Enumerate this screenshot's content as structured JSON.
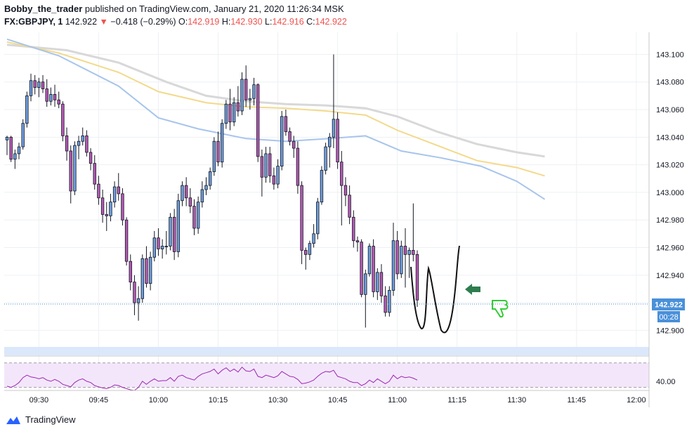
{
  "header": {
    "author": "Bobby_the_trader",
    "published_text": "published on TradingView.com, January 21, 2020 11:26:34 MSK",
    "symbol": "FX:GBPJPY, 1",
    "last": "142.922",
    "change": "−0.418 (−0.29%)",
    "o_label": "O:",
    "o_value": "142.919",
    "h_label": "H:",
    "h_value": "142.930",
    "l_label": "L:",
    "l_value": "142.916",
    "c_label": "C:",
    "c_value": "142.922"
  },
  "footer": {
    "brand": "TradingView"
  },
  "colors": {
    "up_body": "#6f9edf",
    "down_body": "#b559b4",
    "outline": "#131722",
    "ma_fast": "#a7c4ec",
    "ma_mid": "#f3d98a",
    "ma_slow": "#d8d8d8",
    "rsi_line": "#9c27b0",
    "rsi_fill": "#f3e6fb",
    "price_tag": "#4a90d9",
    "drawing_green": "#2e7d4f",
    "thumb_green": "#33cc33"
  },
  "chart_data": {
    "type": "candlestick",
    "timeframe": "1",
    "x_ticks": [
      "09:30",
      "09:45",
      "10:00",
      "10:15",
      "10:30",
      "10:45",
      "11:00",
      "11:15",
      "11:30",
      "11:45",
      "12:00"
    ],
    "y_ticks": [
      "143.100",
      "143.080",
      "143.060",
      "143.040",
      "143.020",
      "143.000",
      "142.980",
      "142.960",
      "142.940",
      "142.920",
      "142.900"
    ],
    "ylim": [
      142.888,
      143.116
    ],
    "last_price_label": "142.922",
    "countdown": "00:28",
    "start_minute": 562,
    "minutes_per_bar": 1,
    "candles": [
      [
        143.038,
        143.041,
        143.027,
        143.04
      ],
      [
        143.04,
        143.041,
        143.022,
        143.024
      ],
      [
        143.024,
        143.031,
        143.017,
        143.028
      ],
      [
        143.028,
        143.036,
        143.024,
        143.033
      ],
      [
        143.033,
        143.053,
        143.031,
        143.05
      ],
      [
        143.05,
        143.073,
        143.047,
        143.07
      ],
      [
        143.07,
        143.086,
        143.066,
        143.081
      ],
      [
        143.081,
        143.085,
        143.071,
        143.076
      ],
      [
        143.076,
        143.083,
        143.069,
        143.08
      ],
      [
        143.08,
        143.085,
        143.072,
        143.075
      ],
      [
        143.075,
        143.082,
        143.062,
        143.066
      ],
      [
        143.066,
        143.076,
        143.063,
        143.071
      ],
      [
        143.071,
        143.078,
        143.062,
        143.067
      ],
      [
        143.067,
        143.073,
        143.061,
        143.064
      ],
      [
        143.064,
        143.066,
        143.037,
        143.041
      ],
      [
        143.041,
        143.047,
        143.023,
        143.03
      ],
      [
        143.03,
        143.034,
        142.992,
        143.001
      ],
      [
        143.001,
        143.037,
        142.998,
        143.034
      ],
      [
        143.034,
        143.041,
        143.024,
        143.037
      ],
      [
        143.037,
        143.047,
        143.034,
        143.041
      ],
      [
        143.041,
        143.045,
        143.026,
        143.029
      ],
      [
        143.029,
        143.032,
        143.016,
        143.021
      ],
      [
        143.021,
        143.027,
        143.002,
        143.006
      ],
      [
        143.006,
        143.012,
        142.991,
        142.996
      ],
      [
        142.996,
        143.002,
        142.978,
        142.984
      ],
      [
        142.984,
        142.993,
        142.972,
        142.983
      ],
      [
        142.983,
        142.999,
        142.979,
        142.993
      ],
      [
        142.993,
        143.008,
        142.989,
        143.004
      ],
      [
        143.004,
        143.014,
        142.994,
        142.999
      ],
      [
        142.999,
        143.003,
        142.976,
        142.98
      ],
      [
        142.98,
        142.982,
        142.947,
        142.95
      ],
      [
        142.95,
        142.955,
        142.929,
        142.935
      ],
      [
        142.935,
        142.94,
        142.911,
        142.92
      ],
      [
        142.92,
        142.932,
        142.907,
        142.923
      ],
      [
        142.923,
        142.955,
        142.92,
        142.952
      ],
      [
        142.952,
        142.961,
        142.931,
        142.934
      ],
      [
        142.934,
        142.957,
        142.929,
        142.953
      ],
      [
        142.953,
        142.972,
        142.95,
        142.967
      ],
      [
        142.967,
        142.974,
        142.954,
        142.959
      ],
      [
        142.959,
        142.966,
        142.952,
        142.961
      ],
      [
        142.961,
        142.972,
        142.955,
        142.961
      ],
      [
        142.961,
        142.985,
        142.958,
        142.982
      ],
      [
        142.982,
        142.988,
        142.951,
        142.957
      ],
      [
        142.957,
        142.999,
        142.953,
        142.994
      ],
      [
        142.994,
        143.008,
        142.99,
        143.005
      ],
      [
        143.005,
        143.011,
        142.99,
        142.996
      ],
      [
        142.996,
        143.003,
        142.985,
        142.99
      ],
      [
        142.99,
        142.995,
        142.969,
        142.974
      ],
      [
        142.974,
        142.997,
        142.97,
        142.993
      ],
      [
        142.993,
        143.008,
        142.989,
        143.002
      ],
      [
        143.002,
        143.011,
        142.998,
        143.005
      ],
      [
        143.005,
        143.018,
        143.002,
        143.015
      ],
      [
        143.015,
        143.04,
        143.012,
        143.037
      ],
      [
        143.037,
        143.044,
        143.019,
        143.022
      ],
      [
        143.022,
        143.053,
        143.018,
        143.05
      ],
      [
        143.05,
        143.067,
        143.046,
        143.064
      ],
      [
        143.064,
        143.075,
        143.045,
        143.051
      ],
      [
        143.051,
        143.069,
        143.048,
        143.065
      ],
      [
        143.065,
        143.077,
        143.055,
        143.059
      ],
      [
        143.059,
        143.087,
        143.056,
        143.082
      ],
      [
        143.082,
        143.092,
        143.062,
        143.067
      ],
      [
        143.067,
        143.075,
        143.06,
        143.068
      ],
      [
        143.068,
        143.083,
        143.063,
        143.078
      ],
      [
        143.078,
        143.079,
        143.022,
        143.026
      ],
      [
        143.026,
        143.031,
        142.997,
        143.011
      ],
      [
        143.011,
        143.033,
        143.007,
        143.028
      ],
      [
        143.028,
        143.033,
        143.007,
        143.012
      ],
      [
        143.012,
        143.018,
        143.002,
        143.006
      ],
      [
        143.006,
        143.024,
        143.003,
        143.019
      ],
      [
        143.019,
        143.059,
        143.016,
        143.055
      ],
      [
        143.055,
        143.06,
        143.041,
        143.044
      ],
      [
        143.044,
        143.047,
        143.034,
        143.037
      ],
      [
        143.037,
        143.041,
        143.025,
        143.032
      ],
      [
        143.032,
        143.037,
        142.999,
        143.005
      ],
      [
        143.005,
        143.008,
        142.948,
        142.958
      ],
      [
        142.958,
        142.96,
        142.944,
        142.955
      ],
      [
        142.955,
        142.965,
        142.951,
        142.963
      ],
      [
        142.963,
        142.977,
        142.96,
        142.97
      ],
      [
        142.97,
        142.996,
        142.966,
        142.993
      ],
      [
        142.993,
        143.019,
        142.991,
        143.016
      ],
      [
        143.016,
        143.036,
        143.013,
        143.033
      ],
      [
        143.033,
        143.043,
        143.018,
        143.04
      ],
      [
        143.04,
        143.1,
        143.032,
        143.053
      ],
      [
        143.053,
        143.058,
        143.017,
        143.022
      ],
      [
        143.022,
        143.03,
        142.976,
        143.005
      ],
      [
        143.005,
        143.011,
        142.99,
        142.998
      ],
      [
        142.998,
        143.005,
        142.977,
        142.982
      ],
      [
        142.982,
        142.987,
        142.96,
        142.965
      ],
      [
        142.965,
        142.968,
        142.957,
        142.964
      ],
      [
        142.964,
        142.966,
        142.924,
        142.926
      ],
      [
        142.926,
        142.944,
        142.902,
        142.941
      ],
      [
        142.941,
        142.963,
        142.939,
        142.961
      ],
      [
        142.961,
        142.966,
        142.924,
        142.928
      ],
      [
        142.928,
        142.945,
        142.922,
        142.942
      ],
      [
        142.942,
        142.948,
        142.92,
        142.925
      ],
      [
        142.925,
        142.932,
        142.91,
        142.913
      ],
      [
        142.913,
        142.932,
        142.91,
        142.929
      ],
      [
        142.929,
        142.978,
        142.925,
        142.965
      ],
      [
        142.965,
        142.972,
        142.937,
        142.941
      ],
      [
        142.941,
        142.965,
        142.938,
        142.961
      ],
      [
        142.961,
        142.974,
        142.931,
        142.955
      ],
      [
        142.955,
        142.96,
        142.938,
        142.958
      ],
      [
        142.958,
        142.992,
        142.95,
        142.955
      ],
      [
        142.955,
        142.958,
        142.917,
        142.922
      ]
    ],
    "ma_fast": [
      [
        562,
        143.111
      ],
      [
        575,
        143.099
      ],
      [
        590,
        143.077
      ],
      [
        600,
        143.054
      ],
      [
        610,
        143.046
      ],
      [
        622,
        143.039
      ],
      [
        632,
        143.037
      ],
      [
        643,
        143.039
      ],
      [
        652,
        143.041
      ],
      [
        661,
        143.03
      ],
      [
        671,
        143.025
      ],
      [
        681,
        143.019
      ],
      [
        690,
        143.008
      ],
      [
        697,
        142.995
      ]
    ],
    "ma_mid": [
      [
        562,
        143.109
      ],
      [
        575,
        143.101
      ],
      [
        590,
        143.087
      ],
      [
        600,
        143.073
      ],
      [
        612,
        143.065
      ],
      [
        622,
        143.062
      ],
      [
        632,
        143.061
      ],
      [
        642,
        143.059
      ],
      [
        652,
        143.056
      ],
      [
        660,
        143.045
      ],
      [
        670,
        143.034
      ],
      [
        680,
        143.023
      ],
      [
        690,
        143.018
      ],
      [
        697,
        143.012
      ]
    ],
    "ma_slow": [
      [
        562,
        143.107
      ],
      [
        577,
        143.103
      ],
      [
        590,
        143.094
      ],
      [
        602,
        143.08
      ],
      [
        612,
        143.07
      ],
      [
        622,
        143.066
      ],
      [
        632,
        143.064
      ],
      [
        642,
        143.063
      ],
      [
        652,
        143.061
      ],
      [
        660,
        143.055
      ],
      [
        670,
        143.044
      ],
      [
        680,
        143.035
      ],
      [
        690,
        143.029
      ],
      [
        697,
        143.026
      ]
    ],
    "rsi": {
      "tick": "40.00",
      "upper": 70,
      "lower": 30,
      "ylim": [
        25,
        80
      ],
      "values": [
        32,
        30,
        33,
        38,
        46,
        50,
        47,
        46,
        44,
        46,
        42,
        40,
        43,
        40,
        35,
        33,
        31,
        38,
        42,
        44,
        40,
        38,
        33,
        31,
        29,
        28,
        30,
        34,
        33,
        30,
        28,
        26,
        25,
        30,
        40,
        35,
        40,
        44,
        40,
        41,
        41,
        46,
        40,
        48,
        50,
        46,
        44,
        42,
        48,
        52,
        54,
        56,
        60,
        52,
        58,
        62,
        56,
        60,
        55,
        63,
        57,
        56,
        60,
        48,
        46,
        50,
        48,
        46,
        49,
        56,
        52,
        48,
        47,
        43,
        36,
        37,
        39,
        42,
        48,
        53,
        56,
        55,
        58,
        48,
        46,
        44,
        40,
        38,
        38,
        33,
        36,
        42,
        38,
        44,
        40,
        36,
        40,
        50,
        44,
        48,
        46,
        47,
        45,
        42
      ]
    }
  }
}
